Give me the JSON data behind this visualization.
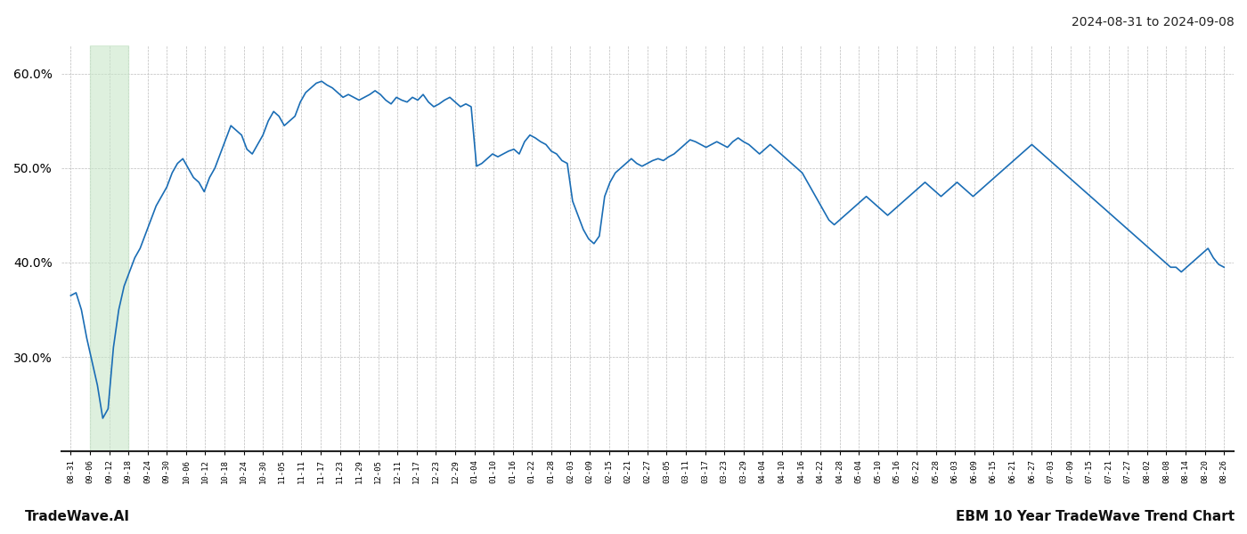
{
  "title_top_right": "2024-08-31 to 2024-09-08",
  "title_bottom_left": "TradeWave.AI",
  "title_bottom_right": "EBM 10 Year TradeWave Trend Chart",
  "line_color": "#1a6db5",
  "line_width": 1.2,
  "bg_color": "#ffffff",
  "grid_color": "#bbbbbb",
  "grid_style": "--",
  "highlight_color": "#c8e6c9",
  "highlight_alpha": 0.6,
  "ylim": [
    20,
    63
  ],
  "yticks": [
    30.0,
    40.0,
    50.0,
    60.0
  ],
  "xlabel_fontsize": 6.5,
  "x_labels": [
    "08-31",
    "09-06",
    "09-12",
    "09-18",
    "09-24",
    "09-30",
    "10-06",
    "10-12",
    "10-18",
    "10-24",
    "10-30",
    "11-05",
    "11-11",
    "11-17",
    "11-23",
    "11-29",
    "12-05",
    "12-11",
    "12-17",
    "12-23",
    "12-29",
    "01-04",
    "01-10",
    "01-16",
    "01-22",
    "01-28",
    "02-03",
    "02-09",
    "02-15",
    "02-21",
    "02-27",
    "03-05",
    "03-11",
    "03-17",
    "03-23",
    "03-29",
    "04-04",
    "04-10",
    "04-16",
    "04-22",
    "04-28",
    "05-04",
    "05-10",
    "05-16",
    "05-22",
    "05-28",
    "06-03",
    "06-09",
    "06-15",
    "06-21",
    "06-27",
    "07-03",
    "07-09",
    "07-15",
    "07-21",
    "07-27",
    "08-02",
    "08-08",
    "08-14",
    "08-20",
    "08-26"
  ],
  "highlight_xstart_label": "09-06",
  "highlight_xend_label": "09-18",
  "y_values": [
    36.5,
    36.8,
    35.0,
    32.0,
    29.5,
    27.0,
    23.5,
    24.5,
    31.0,
    35.0,
    37.5,
    39.0,
    40.5,
    41.5,
    43.0,
    44.5,
    46.0,
    47.0,
    48.0,
    49.5,
    50.5,
    51.0,
    50.0,
    49.0,
    48.5,
    47.5,
    49.0,
    50.0,
    51.5,
    53.0,
    54.5,
    54.0,
    53.5,
    52.0,
    51.5,
    52.5,
    53.5,
    55.0,
    56.0,
    55.5,
    54.5,
    55.0,
    55.5,
    57.0,
    58.0,
    58.5,
    59.0,
    59.2,
    58.8,
    58.5,
    58.0,
    57.5,
    57.8,
    57.5,
    57.2,
    57.5,
    57.8,
    58.2,
    57.8,
    57.2,
    56.8,
    57.5,
    57.2,
    57.0,
    57.5,
    57.2,
    57.8,
    57.0,
    56.5,
    56.8,
    57.2,
    57.5,
    57.0,
    56.5,
    56.8,
    56.5,
    50.2,
    50.5,
    51.0,
    51.5,
    51.2,
    51.5,
    51.8,
    52.0,
    51.5,
    52.8,
    53.5,
    53.2,
    52.8,
    52.5,
    51.8,
    51.5,
    50.8,
    50.5,
    46.5,
    45.0,
    43.5,
    42.5,
    42.0,
    42.8,
    47.0,
    48.5,
    49.5,
    50.0,
    50.5,
    51.0,
    50.5,
    50.2,
    50.5,
    50.8,
    51.0,
    50.8,
    51.2,
    51.5,
    52.0,
    52.5,
    53.0,
    52.8,
    52.5,
    52.2,
    52.5,
    52.8,
    52.5,
    52.2,
    52.8,
    53.2,
    52.8,
    52.5,
    52.0,
    51.5,
    52.0,
    52.5,
    52.0,
    51.5,
    51.0,
    50.5,
    50.0,
    49.5,
    48.5,
    47.5,
    46.5,
    45.5,
    44.5,
    44.0,
    44.5,
    45.0,
    45.5,
    46.0,
    46.5,
    47.0,
    46.5,
    46.0,
    45.5,
    45.0,
    45.5,
    46.0,
    46.5,
    47.0,
    47.5,
    48.0,
    48.5,
    48.0,
    47.5,
    47.0,
    47.5,
    48.0,
    48.5,
    48.0,
    47.5,
    47.0,
    47.5,
    48.0,
    48.5,
    49.0,
    49.5,
    50.0,
    50.5,
    51.0,
    51.5,
    52.0,
    52.5,
    52.0,
    51.5,
    51.0,
    50.5,
    50.0,
    49.5,
    49.0,
    48.5,
    48.0,
    47.5,
    47.0,
    46.5,
    46.0,
    45.5,
    45.0,
    44.5,
    44.0,
    43.5,
    43.0,
    42.5,
    42.0,
    41.5,
    41.0,
    40.5,
    40.0,
    39.5,
    39.5,
    39.0,
    39.5,
    40.0,
    40.5,
    41.0,
    41.5,
    40.5,
    39.8,
    39.5
  ]
}
